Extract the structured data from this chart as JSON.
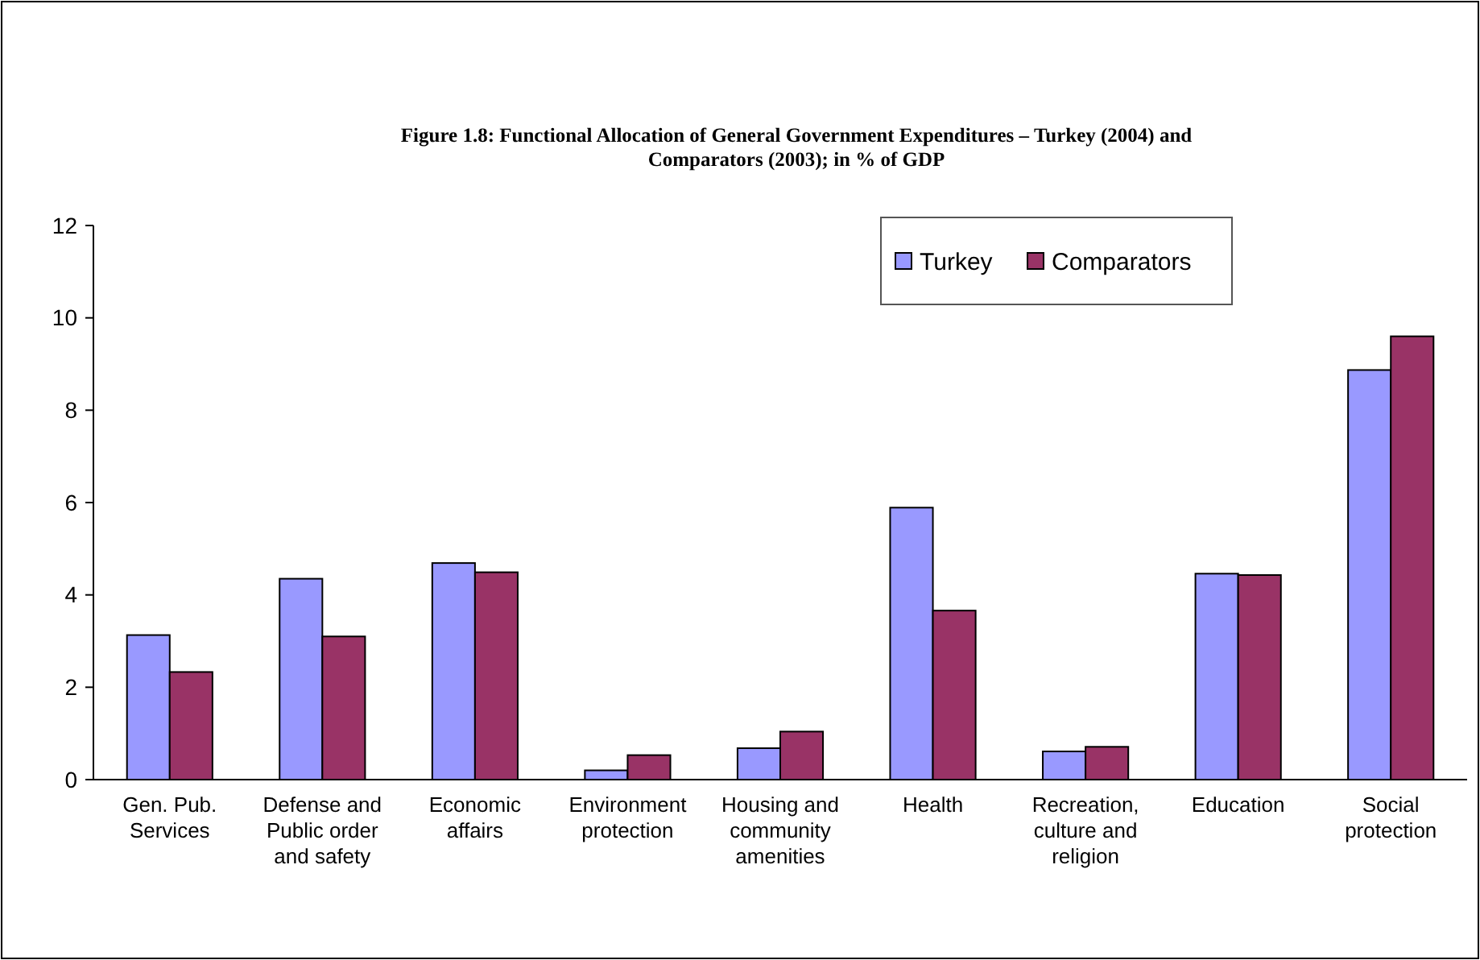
{
  "chart_data": {
    "type": "bar",
    "title": "Figure 1.8: Functional Allocation of General Government Expenditures – Turkey (2004) and Comparators (2003); in % of GDP",
    "categories": [
      "Gen. Pub. Services",
      "Defense and Public order and safety",
      "Economic affairs",
      "Environment protection",
      "Housing and community amenities",
      "Health",
      "Recreation, culture and religion",
      "Education",
      "Social protection"
    ],
    "series": [
      {
        "name": "Turkey",
        "color": "#9999ff",
        "values": [
          3.13,
          4.35,
          4.69,
          0.2,
          0.68,
          5.89,
          0.61,
          4.46,
          8.87
        ]
      },
      {
        "name": "Comparators",
        "color": "#993366",
        "values": [
          2.33,
          3.1,
          4.49,
          0.53,
          1.04,
          3.66,
          0.71,
          4.43,
          9.6
        ]
      }
    ],
    "ylim": [
      0,
      12
    ],
    "yticks": [
      0,
      2,
      4,
      6,
      8,
      10,
      12
    ],
    "grid": false,
    "legend": "top right"
  }
}
